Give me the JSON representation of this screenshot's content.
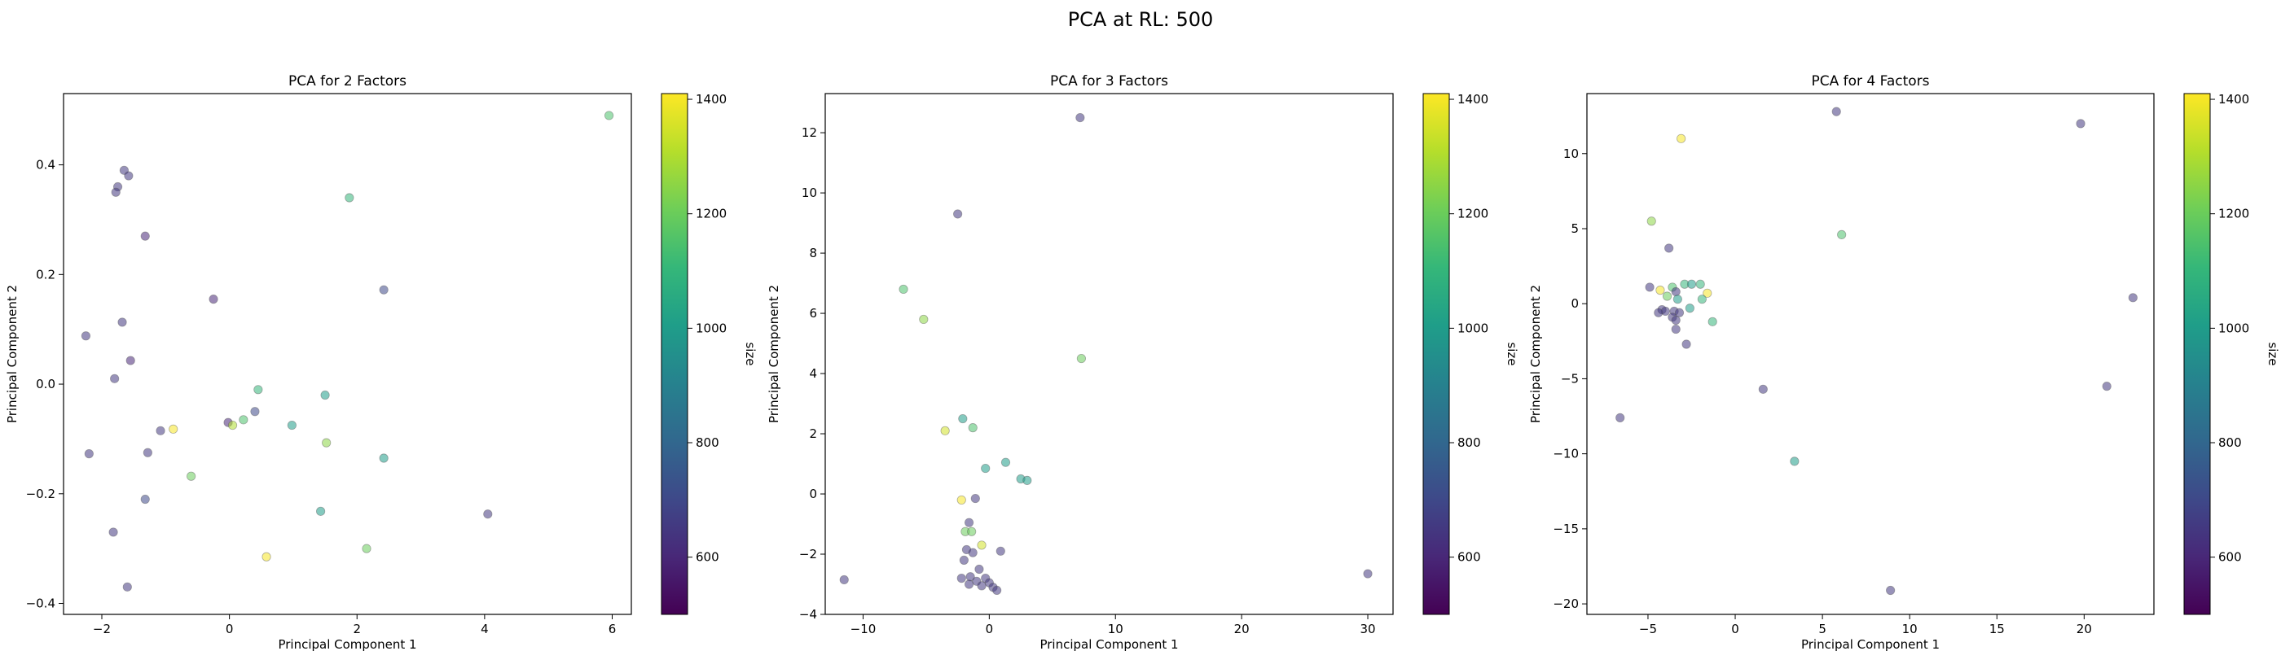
{
  "suptitle": "PCA at RL: 500",
  "colors": {
    "viridis": [
      "#440154",
      "#482878",
      "#3e4989",
      "#31688e",
      "#26828e",
      "#1f9e89",
      "#35b779",
      "#6ece58",
      "#b5de2b",
      "#fde725"
    ],
    "point_stroke": "#555555",
    "axes": "#000000"
  },
  "chart_data": [
    {
      "type": "scatter",
      "title": "PCA for 2 Factors",
      "xlabel": "Principal Component 1",
      "ylabel": "Principal Component 2",
      "xlim": [
        -2.6,
        6.3
      ],
      "ylim": [
        -0.42,
        0.53
      ],
      "xticks": [
        -2,
        0,
        2,
        4,
        6
      ],
      "yticks": [
        -0.4,
        -0.2,
        0.0,
        0.2,
        0.4
      ],
      "xtick_labels": [
        "−2",
        "0",
        "2",
        "4",
        "6"
      ],
      "ytick_labels": [
        "−0.4",
        "−0.2",
        "0.0",
        "0.2",
        "0.4"
      ],
      "colorbar": {
        "label": "size",
        "range": [
          500,
          1410
        ],
        "ticks": [
          600,
          800,
          1000,
          1200,
          1400
        ],
        "tick_labels": [
          "600",
          "800",
          "1000",
          "1200",
          "1400"
        ]
      },
      "points": [
        {
          "x": 5.95,
          "y": 0.49,
          "c": 1150
        },
        {
          "x": 1.88,
          "y": 0.34,
          "c": 1100
        },
        {
          "x": -1.65,
          "y": 0.39,
          "c": 650
        },
        {
          "x": -1.58,
          "y": 0.38,
          "c": 650
        },
        {
          "x": -1.75,
          "y": 0.36,
          "c": 650
        },
        {
          "x": -1.78,
          "y": 0.35,
          "c": 650
        },
        {
          "x": -1.32,
          "y": 0.27,
          "c": 600
        },
        {
          "x": -0.25,
          "y": 0.155,
          "c": 600
        },
        {
          "x": 2.42,
          "y": 0.172,
          "c": 700
        },
        {
          "x": -1.68,
          "y": 0.113,
          "c": 650
        },
        {
          "x": -2.25,
          "y": 0.088,
          "c": 650
        },
        {
          "x": -1.55,
          "y": 0.043,
          "c": 600
        },
        {
          "x": -1.8,
          "y": 0.01,
          "c": 650
        },
        {
          "x": 0.45,
          "y": -0.01,
          "c": 1100
        },
        {
          "x": 1.5,
          "y": -0.02,
          "c": 1000
        },
        {
          "x": 0.4,
          "y": -0.05,
          "c": 700
        },
        {
          "x": 0.22,
          "y": -0.065,
          "c": 1150
        },
        {
          "x": -0.02,
          "y": -0.07,
          "c": 600
        },
        {
          "x": 0.05,
          "y": -0.075,
          "c": 1300
        },
        {
          "x": 0.98,
          "y": -0.075,
          "c": 1000
        },
        {
          "x": -0.88,
          "y": -0.082,
          "c": 1400
        },
        {
          "x": -1.08,
          "y": -0.085,
          "c": 650
        },
        {
          "x": 1.52,
          "y": -0.107,
          "c": 1250
        },
        {
          "x": -2.2,
          "y": -0.127,
          "c": 650
        },
        {
          "x": -1.28,
          "y": -0.125,
          "c": 650
        },
        {
          "x": 2.42,
          "y": -0.135,
          "c": 1000
        },
        {
          "x": -0.6,
          "y": -0.168,
          "c": 1200
        },
        {
          "x": -1.32,
          "y": -0.21,
          "c": 700
        },
        {
          "x": 1.43,
          "y": -0.232,
          "c": 1000
        },
        {
          "x": 4.05,
          "y": -0.237,
          "c": 650
        },
        {
          "x": -1.82,
          "y": -0.27,
          "c": 650
        },
        {
          "x": 2.15,
          "y": -0.3,
          "c": 1200
        },
        {
          "x": 0.58,
          "y": -0.315,
          "c": 1400
        },
        {
          "x": -1.6,
          "y": -0.37,
          "c": 650
        }
      ]
    },
    {
      "type": "scatter",
      "title": "PCA for 3 Factors",
      "xlabel": "Principal Component 1",
      "ylabel": "Principal Component 2",
      "xlim": [
        -13,
        32
      ],
      "ylim": [
        -4.0,
        13.3
      ],
      "xticks": [
        -10,
        0,
        10,
        20,
        30
      ],
      "yticks": [
        -4,
        -2,
        0,
        2,
        4,
        6,
        8,
        10,
        12
      ],
      "xtick_labels": [
        "−10",
        "0",
        "10",
        "20",
        "30"
      ],
      "ytick_labels": [
        "−4",
        "−2",
        "0",
        "2",
        "4",
        "6",
        "8",
        "10",
        "12"
      ],
      "colorbar": {
        "label": "size",
        "range": [
          500,
          1410
        ],
        "ticks": [
          600,
          800,
          1000,
          1200,
          1400
        ],
        "tick_labels": [
          "600",
          "800",
          "1000",
          "1200",
          "1400"
        ]
      },
      "points": [
        {
          "x": 7.2,
          "y": 12.5,
          "c": 650
        },
        {
          "x": -2.5,
          "y": 9.3,
          "c": 650
        },
        {
          "x": -6.8,
          "y": 6.8,
          "c": 1150
        },
        {
          "x": -5.2,
          "y": 5.8,
          "c": 1250
        },
        {
          "x": 7.3,
          "y": 4.5,
          "c": 1200
        },
        {
          "x": -2.1,
          "y": 2.5,
          "c": 1000
        },
        {
          "x": -1.3,
          "y": 2.2,
          "c": 1150
        },
        {
          "x": -3.5,
          "y": 2.1,
          "c": 1350
        },
        {
          "x": 1.3,
          "y": 1.05,
          "c": 1000
        },
        {
          "x": -0.3,
          "y": 0.85,
          "c": 1000
        },
        {
          "x": 2.5,
          "y": 0.5,
          "c": 1000
        },
        {
          "x": 3.0,
          "y": 0.45,
          "c": 1000
        },
        {
          "x": -2.2,
          "y": -0.2,
          "c": 1400
        },
        {
          "x": -1.1,
          "y": -0.15,
          "c": 650
        },
        {
          "x": -1.6,
          "y": -0.95,
          "c": 650
        },
        {
          "x": -1.9,
          "y": -1.25,
          "c": 1200
        },
        {
          "x": -1.4,
          "y": -1.25,
          "c": 1200
        },
        {
          "x": -0.6,
          "y": -1.7,
          "c": 1350
        },
        {
          "x": -1.8,
          "y": -1.85,
          "c": 650
        },
        {
          "x": 0.9,
          "y": -1.9,
          "c": 650
        },
        {
          "x": -1.3,
          "y": -1.95,
          "c": 650
        },
        {
          "x": -2.0,
          "y": -2.2,
          "c": 650
        },
        {
          "x": -0.8,
          "y": -2.5,
          "c": 650
        },
        {
          "x": -2.2,
          "y": -2.8,
          "c": 650
        },
        {
          "x": -1.5,
          "y": -2.75,
          "c": 650
        },
        {
          "x": -0.3,
          "y": -2.8,
          "c": 650
        },
        {
          "x": -1.0,
          "y": -2.9,
          "c": 650
        },
        {
          "x": 0.0,
          "y": -2.95,
          "c": 650
        },
        {
          "x": -1.6,
          "y": -3.0,
          "c": 650
        },
        {
          "x": -0.6,
          "y": -3.05,
          "c": 650
        },
        {
          "x": 0.3,
          "y": -3.1,
          "c": 650
        },
        {
          "x": 0.6,
          "y": -3.2,
          "c": 650
        },
        {
          "x": -11.5,
          "y": -2.85,
          "c": 650
        },
        {
          "x": 30.0,
          "y": -2.65,
          "c": 650
        }
      ]
    },
    {
      "type": "scatter",
      "title": "PCA for 4 Factors",
      "xlabel": "Principal Component 1",
      "ylabel": "Principal Component 2",
      "xlim": [
        -8.5,
        24.0
      ],
      "ylim": [
        -20.7,
        14.0
      ],
      "xticks": [
        -5,
        0,
        5,
        10,
        15,
        20
      ],
      "yticks": [
        -20,
        -15,
        -10,
        -5,
        0,
        5,
        10
      ],
      "xtick_labels": [
        "−5",
        "0",
        "5",
        "10",
        "15",
        "20"
      ],
      "ytick_labels": [
        "−20",
        "−15",
        "−10",
        "−5",
        "0",
        "5",
        "10"
      ],
      "colorbar": {
        "label": "size",
        "range": [
          500,
          1410
        ],
        "ticks": [
          600,
          800,
          1000,
          1200,
          1400
        ],
        "tick_labels": [
          "600",
          "800",
          "1000",
          "1200",
          "1400"
        ]
      },
      "points": [
        {
          "x": 5.8,
          "y": 12.8,
          "c": 650
        },
        {
          "x": 19.8,
          "y": 12.0,
          "c": 650
        },
        {
          "x": -3.1,
          "y": 11.0,
          "c": 1400
        },
        {
          "x": -4.8,
          "y": 5.5,
          "c": 1250
        },
        {
          "x": 6.1,
          "y": 4.6,
          "c": 1150
        },
        {
          "x": -3.8,
          "y": 3.7,
          "c": 650
        },
        {
          "x": -2.9,
          "y": 1.3,
          "c": 1100
        },
        {
          "x": -2.5,
          "y": 1.3,
          "c": 1000
        },
        {
          "x": -2.0,
          "y": 1.3,
          "c": 1100
        },
        {
          "x": -3.6,
          "y": 1.1,
          "c": 1150
        },
        {
          "x": -4.9,
          "y": 1.1,
          "c": 650
        },
        {
          "x": -4.3,
          "y": 0.9,
          "c": 1400
        },
        {
          "x": -3.4,
          "y": 0.8,
          "c": 650
        },
        {
          "x": -1.6,
          "y": 0.7,
          "c": 1400
        },
        {
          "x": -3.9,
          "y": 0.5,
          "c": 1200
        },
        {
          "x": -3.3,
          "y": 0.3,
          "c": 1000
        },
        {
          "x": -1.9,
          "y": 0.3,
          "c": 1100
        },
        {
          "x": -2.6,
          "y": -0.3,
          "c": 1000
        },
        {
          "x": -4.2,
          "y": -0.4,
          "c": 650
        },
        {
          "x": -4.0,
          "y": -0.5,
          "c": 650
        },
        {
          "x": -3.5,
          "y": -0.5,
          "c": 650
        },
        {
          "x": -4.4,
          "y": -0.6,
          "c": 650
        },
        {
          "x": -3.2,
          "y": -0.6,
          "c": 650
        },
        {
          "x": -3.6,
          "y": -0.9,
          "c": 650
        },
        {
          "x": -3.4,
          "y": -1.1,
          "c": 650
        },
        {
          "x": -1.3,
          "y": -1.2,
          "c": 1100
        },
        {
          "x": -3.4,
          "y": -1.7,
          "c": 650
        },
        {
          "x": -2.8,
          "y": -2.7,
          "c": 650
        },
        {
          "x": 22.8,
          "y": 0.4,
          "c": 650
        },
        {
          "x": 1.6,
          "y": -5.7,
          "c": 650
        },
        {
          "x": 21.3,
          "y": -5.5,
          "c": 650
        },
        {
          "x": -6.6,
          "y": -7.6,
          "c": 650
        },
        {
          "x": 3.4,
          "y": -10.5,
          "c": 1000
        },
        {
          "x": 8.9,
          "y": -19.1,
          "c": 650
        }
      ]
    }
  ]
}
